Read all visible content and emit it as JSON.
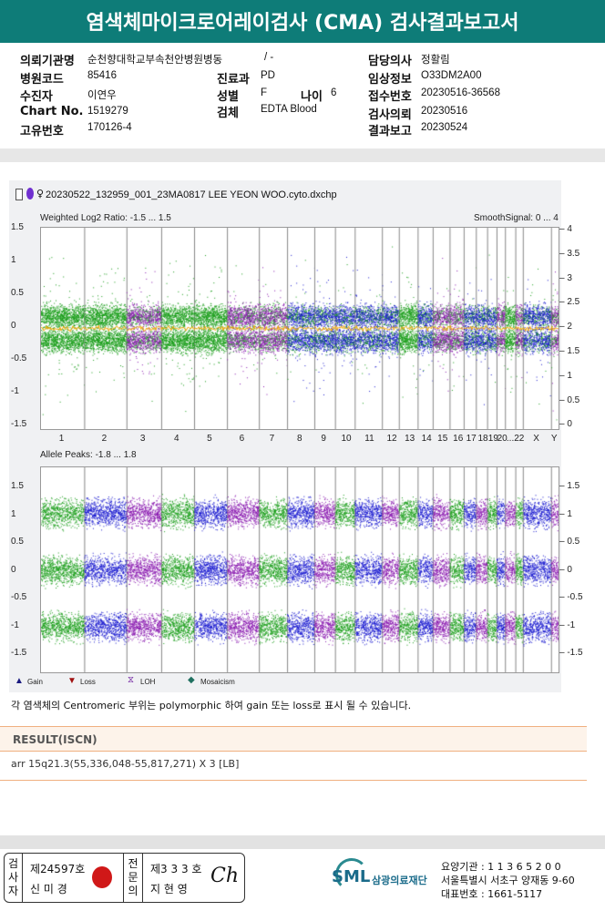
{
  "title": "염색체마이크로어레이검사 (CMA) 검사결과보고서",
  "info": {
    "inst_label": "의뢰기관명",
    "inst": "순천향대학교부속천안병원병동",
    "ward": "/ -",
    "code_label": "병원코드",
    "code": "85416",
    "dept_label": "진료과",
    "dept": "PD",
    "name_label": "수진자",
    "name": "이연우",
    "sex_label": "성별",
    "sex": "F",
    "age_label": "나이",
    "age": "6",
    "chart_label": "Chart No.",
    "chart": "1519279",
    "specimen_label": "검체",
    "specimen": "EDTA Blood",
    "uid_label": "고유번호",
    "uid": "170126-4",
    "doctor_label": "담당의사",
    "doctor": "정활림",
    "clinical_label": "임상정보",
    "clinical": "O33DM2A00",
    "recv_label": "접수번호",
    "recv": "20230516-36568",
    "req_label": "검사의뢰",
    "req": "20230516",
    "report_label": "결과보고",
    "report": "20230524"
  },
  "plot": {
    "filename": "20230522_132959_001_23MA0817 LEE YEON WOO.cyto.dxchp",
    "top_left_label": "Weighted Log2 Ratio: -1.5 ... 1.5",
    "top_right_label": "SmoothSignal: 0 ... 4",
    "top_left_ticks": [
      "1.5",
      "1",
      "0.5",
      "0",
      "-0.5",
      "-1",
      "-1.5"
    ],
    "top_right_ticks": [
      "4",
      "3.5",
      "3",
      "2.5",
      "2",
      "1.5",
      "1",
      "0.5",
      "0"
    ],
    "chromosomes": [
      "1",
      "2",
      "3",
      "4",
      "5",
      "6",
      "7",
      "8",
      "9",
      "10",
      "11",
      "12",
      "13",
      "14",
      "15",
      "16",
      "17",
      "18",
      "19",
      "20",
      "21",
      "22",
      "X",
      "Y"
    ],
    "chrom_labels": [
      "1",
      "2",
      "3",
      "4",
      "5",
      "6",
      "7",
      "8",
      "9",
      "10",
      "11",
      "12",
      "13",
      "14",
      "15",
      "16",
      "17",
      "18",
      "19",
      "20",
      "...22",
      "X",
      "Y"
    ],
    "bottom_label": "Allele Peaks: -1.8 ... 1.8",
    "bottom_left_ticks": [
      "1.5",
      "1",
      "0.5",
      "0",
      "-0.5",
      "-1",
      "-1.5"
    ],
    "bottom_right_ticks": [
      "1.5",
      "1",
      "0.5",
      "0",
      "-0.5",
      "-1",
      "-1.5"
    ],
    "legend": [
      "Gain",
      "Loss",
      "LOH",
      "Mosaicism"
    ],
    "colors": {
      "green": "#1a9e1a",
      "blue": "#1a1ad0",
      "purple": "#8a1ab0",
      "orange": "#f5a800"
    }
  },
  "note": "각 염색체의 Centromeric 부위는 polymorphic 하여 gain 또는 loss로 표시 될 수 있습니다.",
  "result": {
    "header": "RESULT(ISCN)",
    "value": "arr 15q21.3(55,336,048-55,817,271) X 3 [LB]"
  },
  "footer": {
    "inspector_label": "검사자",
    "inspector_no": "제24597호",
    "inspector": "신 미 경",
    "specialist_label": "전문의",
    "specialist_no": "제3 3 3 호",
    "specialist": "지 현 영",
    "org": "삼광의료재단",
    "logo": "SML",
    "code": "요양기관 : 1 1 3 6 5 2 0 0",
    "address": "서울특별시 서초구 양재동 9-60",
    "phone": "대표번호 : 1661-5117"
  }
}
